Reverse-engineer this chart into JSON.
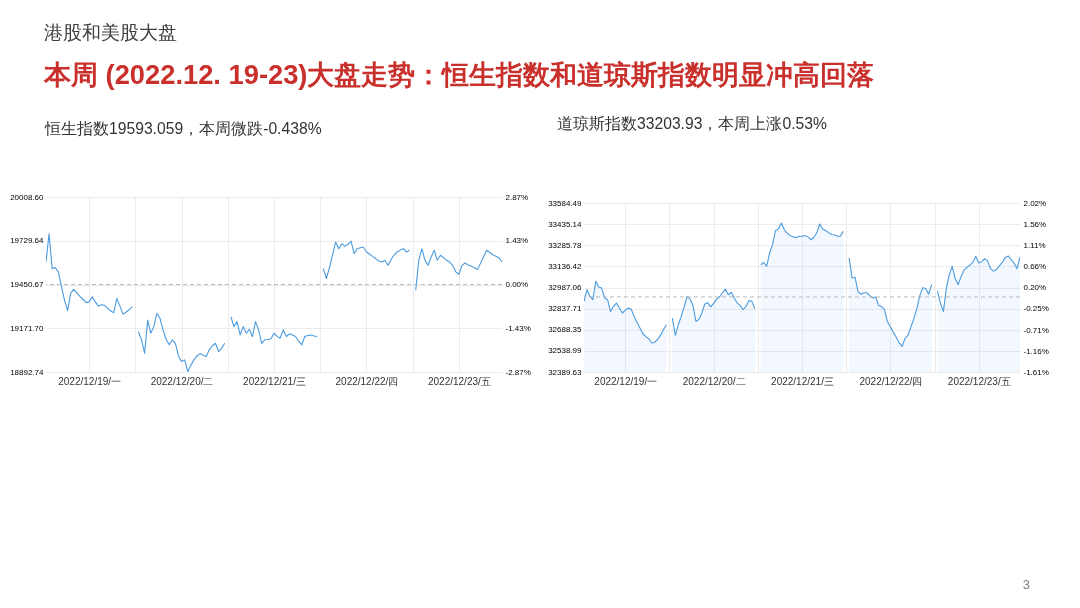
{
  "chart_data": [
    {
      "type": "other",
      "title": "本周 (2022.12. 19-23)大盘走势：恒生指数和道琼斯指数明显冲高回落",
      "subtitle": "港股和美股大盘",
      "annotations": [
        "3"
      ]
    },
    {
      "type": "line",
      "title": "恒生指数19593.059，本周微跌-0.438%",
      "categories": [
        null,
        null,
        null,
        null,
        null,
        null,
        null,
        null,
        null,
        null,
        null,
        null,
        null,
        null,
        "2022/12/19/一",
        null,
        null,
        null,
        null,
        null,
        null,
        null,
        null,
        null,
        null,
        null,
        null,
        null,
        null,
        null,
        null,
        null,
        null,
        null,
        null,
        null,
        null,
        null,
        null,
        null,
        null,
        null,
        null,
        null,
        "2022/12/20/二",
        null,
        null,
        null,
        null,
        null,
        null,
        null,
        null,
        null,
        null,
        null,
        null,
        null,
        null,
        null,
        null,
        null,
        null,
        null,
        null,
        null,
        null,
        null,
        null,
        null,
        null,
        null,
        null,
        null,
        "2022/12/21/三",
        null,
        null,
        null,
        null,
        null,
        null,
        null,
        null,
        null,
        null,
        null,
        null,
        null,
        null,
        null,
        null,
        null,
        null,
        null,
        null,
        null,
        null,
        null,
        null,
        null,
        null,
        null,
        null,
        null,
        "2022/12/22/四",
        null,
        null,
        null,
        null,
        null,
        null,
        null,
        null,
        null,
        null,
        null,
        null,
        null,
        null,
        null,
        null,
        null,
        null,
        null,
        null,
        null,
        null,
        null,
        null,
        null,
        null,
        null,
        null,
        null,
        "2022/12/23/五",
        null,
        null,
        null,
        null,
        null,
        null,
        null,
        null,
        null,
        null,
        null,
        null,
        null,
        null
      ],
      "series": [
        {
          "color": "#4b9be0",
          "values": [
            19594,
            19774,
            19552,
            19559,
            19531,
            19440,
            19351,
            19284,
            19394,
            19420,
            19398,
            19375,
            19355,
            19335,
            19340,
            19372,
            19340,
            19313,
            19322,
            19318,
            19298,
            19282,
            19271,
            19362,
            19313,
            19262,
            19275,
            19290,
            19309,
            null,
            19150,
            19097,
            19013,
            19224,
            19140,
            19182,
            19267,
            19235,
            19160,
            19100,
            19066,
            19098,
            19076,
            18995,
            18960,
            18970,
            18895,
            18935,
            18970,
            18995,
            19010,
            19000,
            18992,
            19034,
            19060,
            19076,
            19023,
            19045,
            19076,
            null,
            19245,
            19182,
            19214,
            19129,
            19182,
            19140,
            19165,
            19119,
            19214,
            19161,
            19076,
            19098,
            19100,
            19105,
            19140,
            19120,
            19108,
            19161,
            19119,
            19136,
            19128,
            19119,
            19090,
            19066,
            19119,
            19125,
            19129,
            19122,
            19119,
            null,
            19552,
            19489,
            19559,
            19640,
            19721,
            19679,
            19711,
            19694,
            19707,
            19728,
            19647,
            19679,
            19685,
            19690,
            19658,
            19645,
            19630,
            19616,
            19600,
            19594,
            19605,
            19573,
            19610,
            19640,
            19658,
            19670,
            19679,
            19658,
            19669,
            null,
            19415,
            19605,
            19679,
            19605,
            19573,
            19626,
            19669,
            19605,
            19637,
            19622,
            19605,
            19594,
            19573,
            19531,
            19516,
            19573,
            19588,
            19575,
            19567,
            19559,
            19546,
            19584,
            19626,
            19669,
            19655,
            19640,
            19631,
            19622,
            19593
          ]
        }
      ],
      "ylim": [
        18892.74,
        20008.6
      ],
      "yticks": [
        18892.74,
        {
          "value": 19171.7,
          "label": "19171.70"
        },
        19450.67,
        19729.64,
        {
          "value": 20008.6,
          "label": "20008.60"
        }
      ],
      "y2lim": [
        -2.87,
        2.87
      ],
      "y2ticks": [
        {
          "value": -2.87,
          "label": "-2.87%"
        },
        {
          "value": -1.43,
          "label": "-1.43%"
        },
        {
          "value": 0,
          "label": "0.00%"
        },
        {
          "value": 1.43,
          "label": "1.43%"
        },
        {
          "value": 2.87,
          "label": "2.87%"
        }
      ],
      "ref_lines": [
        {
          "axis": "y",
          "value": 19450.67,
          "line_style": "dashed",
          "color": "#bbbbbb"
        }
      ],
      "grid": true
    },
    {
      "type": "area",
      "title": "道琼斯指数33203.93，本周上涨0.53%",
      "categories": [
        null,
        null,
        null,
        null,
        null,
        null,
        null,
        null,
        null,
        null,
        null,
        null,
        null,
        null,
        "2022/12/19/一",
        null,
        null,
        null,
        null,
        null,
        null,
        null,
        null,
        null,
        null,
        null,
        null,
        null,
        null,
        null,
        null,
        null,
        null,
        null,
        null,
        null,
        null,
        null,
        null,
        null,
        null,
        null,
        null,
        null,
        "2022/12/20/二",
        null,
        null,
        null,
        null,
        null,
        null,
        null,
        null,
        null,
        null,
        null,
        null,
        null,
        null,
        null,
        null,
        null,
        null,
        null,
        null,
        null,
        null,
        null,
        null,
        null,
        null,
        null,
        null,
        null,
        "2022/12/21/三",
        null,
        null,
        null,
        null,
        null,
        null,
        null,
        null,
        null,
        null,
        null,
        null,
        null,
        null,
        null,
        null,
        null,
        null,
        null,
        null,
        null,
        null,
        null,
        null,
        null,
        null,
        null,
        null,
        null,
        "2022/12/22/四",
        null,
        null,
        null,
        null,
        null,
        null,
        null,
        null,
        null,
        null,
        null,
        null,
        null,
        null,
        null,
        null,
        null,
        null,
        null,
        null,
        null,
        null,
        null,
        null,
        null,
        null,
        null,
        null,
        null,
        "2022/12/23/五",
        null,
        null,
        null,
        null,
        null,
        null,
        null,
        null,
        null,
        null,
        null,
        null,
        null,
        null
      ],
      "series": [
        {
          "color": "#4b9be0",
          "values": [
            32889,
            32972,
            32924,
            32901,
            33031,
            32990,
            32983,
            32913,
            32901,
            32818,
            32854,
            32877,
            32842,
            32807,
            32825,
            32842,
            32835,
            32783,
            32740,
            32700,
            32660,
            32640,
            32625,
            32595,
            32600,
            32620,
            32650,
            32690,
            32724,
            null,
            32771,
            32649,
            32724,
            32783,
            32850,
            32924,
            32905,
            32860,
            32748,
            32760,
            32807,
            32870,
            32880,
            32850,
            32875,
            32905,
            32920,
            32950,
            32975,
            32936,
            32955,
            32913,
            32877,
            32861,
            32830,
            32854,
            32895,
            32889,
            32837,
            null,
            33148,
            33165,
            33137,
            33231,
            33290,
            33390,
            33400,
            33443,
            33395,
            33370,
            33355,
            33345,
            33340,
            33349,
            33349,
            33355,
            33345,
            33325,
            33342,
            33372,
            33436,
            33400,
            33390,
            33375,
            33362,
            33360,
            33349,
            33349,
            33384,
            null,
            33196,
            33054,
            33060,
            32960,
            32940,
            32950,
            32950,
            32930,
            32913,
            32920,
            32862,
            32852,
            32830,
            32745,
            32710,
            32670,
            32635,
            32595,
            32571,
            32628,
            32650,
            32710,
            32770,
            32840,
            32930,
            32985,
            32980,
            32940,
            33007,
            null,
            32960,
            32877,
            32818,
            32983,
            33078,
            33137,
            33050,
            33007,
            33065,
            33110,
            33130,
            33145,
            33165,
            33207,
            33160,
            33170,
            33191,
            33175,
            33120,
            33103,
            33115,
            33140,
            33165,
            33200,
            33210,
            33185,
            33160,
            33120,
            33204
          ]
        }
      ],
      "ylim": [
        32389.63,
        33584.49
      ],
      "yticks": [
        32389.63,
        32538.99,
        32688.35,
        32837.71,
        32987.06,
        33136.42,
        33285.78,
        33435.14,
        33584.49
      ],
      "y2lim": [
        -1.61,
        2.02
      ],
      "y2ticks": [
        {
          "value": -1.61,
          "label": "-1.61%"
        },
        {
          "value": -1.16,
          "label": "-1.16%"
        },
        {
          "value": -0.71,
          "label": "-0.71%"
        },
        {
          "value": -0.25,
          "label": "-0.25%"
        },
        {
          "value": 0.2,
          "label": "0.20%"
        },
        {
          "value": 0.66,
          "label": "0.66%"
        },
        {
          "value": 1.11,
          "label": "1.11%"
        },
        {
          "value": 1.56,
          "label": "1.56%"
        },
        {
          "value": 2.02,
          "label": "2.02%"
        }
      ],
      "ref_lines": [
        {
          "axis": "y",
          "value": 32920.46,
          "line_style": "dashed",
          "color": "#bbbbbb"
        }
      ],
      "grid": true
    }
  ]
}
